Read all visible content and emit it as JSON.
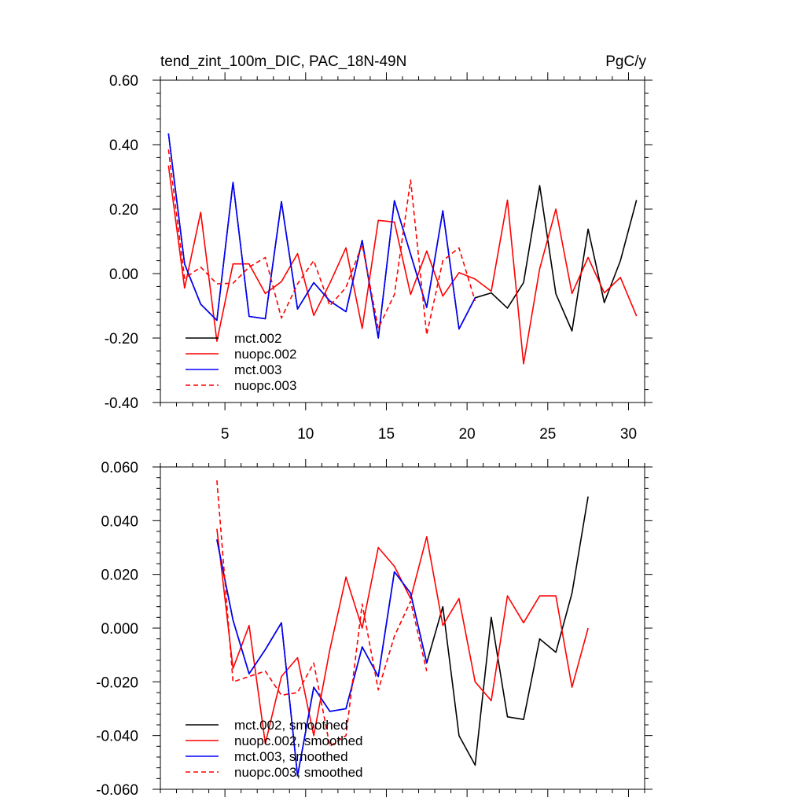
{
  "chart_data": [
    {
      "type": "line",
      "title": "tend_zint_100m_DIC, PAC_18N-49N",
      "units": "PgC/y",
      "xlabel": "",
      "ylabel": "",
      "xlim": [
        1,
        31
      ],
      "ylim": [
        -0.4,
        0.6
      ],
      "x_ticks": [
        5,
        10,
        15,
        20,
        25,
        30
      ],
      "x_tick_labels": [
        "5",
        "10",
        "15",
        "20",
        "25",
        "30"
      ],
      "y_ticks": [
        -0.4,
        -0.2,
        0.0,
        0.2,
        0.4,
        0.6
      ],
      "y_tick_labels": [
        "-0.40",
        "-0.20",
        "0.00",
        "0.20",
        "0.40",
        "0.60"
      ],
      "legend_position": "bottom-left",
      "series": [
        {
          "name": "mct.002",
          "color": "#000000",
          "dash": "solid",
          "x": [
            1.5,
            2.5,
            3.5,
            4.5,
            5.5,
            6.5,
            7.5,
            8.5,
            9.5,
            10.5,
            11.5,
            12.5,
            13.5,
            14.5,
            15.5,
            16.5,
            17.5,
            18.5,
            19.5,
            20.5,
            21.5,
            22.5,
            23.5,
            24.5,
            25.5,
            26.5,
            27.5,
            28.5,
            29.5,
            30.5
          ],
          "values": [
            0.435,
            0.03,
            -0.095,
            -0.145,
            0.283,
            -0.133,
            -0.14,
            0.223,
            -0.11,
            -0.028,
            -0.085,
            -0.118,
            0.103,
            -0.2,
            0.226,
            0.06,
            -0.105,
            0.195,
            -0.172,
            -0.075,
            -0.06,
            -0.107,
            -0.028,
            0.273,
            -0.063,
            -0.178,
            0.138,
            -0.09,
            0.04,
            0.228
          ]
        },
        {
          "name": "nuopc.002",
          "color": "#ff0000",
          "dash": "solid",
          "x": [
            1.5,
            2.5,
            3.5,
            4.5,
            5.5,
            6.5,
            7.5,
            8.5,
            9.5,
            10.5,
            11.5,
            12.5,
            13.5,
            14.5,
            15.5,
            16.5,
            17.5,
            18.5,
            19.5,
            20.5,
            21.5,
            22.5,
            23.5,
            24.5,
            25.5,
            26.5,
            27.5,
            28.5,
            29.5,
            30.5
          ],
          "values": [
            0.335,
            -0.045,
            0.19,
            -0.21,
            0.03,
            0.03,
            -0.062,
            -0.025,
            0.062,
            -0.13,
            -0.03,
            0.08,
            -0.17,
            0.165,
            0.16,
            -0.065,
            0.07,
            -0.07,
            0.003,
            -0.017,
            -0.055,
            0.228,
            -0.28,
            0.015,
            0.2,
            -0.062,
            0.05,
            -0.06,
            -0.012,
            -0.132
          ]
        },
        {
          "name": "mct.003",
          "color": "#0000ff",
          "dash": "solid",
          "x": [
            1.5,
            2.5,
            3.5,
            4.5,
            5.5,
            6.5,
            7.5,
            8.5,
            9.5,
            10.5,
            11.5,
            12.5,
            13.5,
            14.5,
            15.5,
            16.5,
            17.5,
            18.5,
            19.5,
            20.5
          ],
          "values": [
            0.435,
            0.03,
            -0.095,
            -0.145,
            0.283,
            -0.133,
            -0.14,
            0.223,
            -0.11,
            -0.028,
            -0.085,
            -0.118,
            0.103,
            -0.2,
            0.226,
            0.06,
            -0.105,
            0.195,
            -0.172,
            -0.075
          ]
        },
        {
          "name": "nuopc.003",
          "color": "#ff0000",
          "dash": "dashed",
          "x": [
            1.5,
            2.5,
            3.5,
            4.5,
            5.5,
            6.5,
            7.5,
            8.5,
            9.5,
            10.5,
            11.5,
            12.5,
            13.5,
            14.5,
            15.5,
            16.5,
            17.5,
            18.5,
            19.5,
            20.5
          ],
          "values": [
            0.385,
            -0.015,
            0.02,
            -0.032,
            -0.03,
            0.02,
            0.05,
            -0.138,
            -0.032,
            0.04,
            -0.1,
            -0.043,
            0.09,
            -0.17,
            -0.065,
            0.29,
            -0.19,
            0.04,
            0.08,
            -0.085
          ]
        }
      ]
    },
    {
      "type": "line",
      "title": "",
      "xlabel": "",
      "ylabel": "",
      "xlim": [
        1,
        31
      ],
      "ylim": [
        -0.06,
        0.06
      ],
      "x_ticks": [
        5,
        10,
        15,
        20,
        25,
        30
      ],
      "x_tick_labels": [],
      "y_ticks": [
        -0.06,
        -0.04,
        -0.02,
        0.0,
        0.02,
        0.04,
        0.06
      ],
      "y_tick_labels": [
        "-0.060",
        "-0.040",
        "-0.020",
        "0.000",
        "0.020",
        "0.040",
        "0.060"
      ],
      "legend_position": "bottom-left",
      "series": [
        {
          "name": "mct.002, smoothed",
          "color": "#000000",
          "dash": "solid",
          "x": [
            4.5,
            5.5,
            6.5,
            7.5,
            8.5,
            9.5,
            10.5,
            11.5,
            12.5,
            13.5,
            14.5,
            15.5,
            16.5,
            17.5,
            18.5,
            19.5,
            20.5,
            21.5,
            22.5,
            23.5,
            24.5,
            25.5,
            26.5,
            27.5
          ],
          "values": [
            0.033,
            0.003,
            -0.017,
            -0.008,
            0.002,
            -0.055,
            -0.022,
            -0.031,
            -0.03,
            -0.007,
            -0.018,
            0.021,
            0.013,
            -0.013,
            0.008,
            -0.04,
            -0.051,
            0.004,
            -0.033,
            -0.034,
            -0.004,
            -0.009,
            0.013,
            0.049
          ]
        },
        {
          "name": "nuopc.002, smoothed",
          "color": "#ff0000",
          "dash": "solid",
          "x": [
            4.5,
            5.5,
            6.5,
            7.5,
            8.5,
            9.5,
            10.5,
            11.5,
            12.5,
            13.5,
            14.5,
            15.5,
            16.5,
            17.5,
            18.5,
            19.5,
            20.5,
            21.5,
            22.5,
            23.5,
            24.5,
            25.5,
            26.5,
            27.5
          ],
          "values": [
            0.037,
            -0.015,
            0.001,
            -0.043,
            -0.018,
            -0.011,
            -0.04,
            -0.008,
            0.019,
            0.0,
            0.03,
            0.023,
            0.011,
            0.034,
            0.001,
            0.011,
            -0.02,
            -0.027,
            0.012,
            0.002,
            0.012,
            0.012,
            -0.022,
            0.0
          ]
        },
        {
          "name": "mct.003, smoothed",
          "color": "#0000ff",
          "dash": "solid",
          "x": [
            4.5,
            5.5,
            6.5,
            7.5,
            8.5,
            9.5,
            10.5,
            11.5,
            12.5,
            13.5,
            14.5,
            15.5,
            16.5,
            17.5
          ],
          "values": [
            0.033,
            0.003,
            -0.017,
            -0.008,
            0.002,
            -0.055,
            -0.022,
            -0.031,
            -0.03,
            -0.007,
            -0.018,
            0.021,
            0.013,
            -0.013
          ]
        },
        {
          "name": "nuopc.003, smoothed",
          "color": "#ff0000",
          "dash": "dashed",
          "x": [
            4.5,
            5.5,
            6.5,
            7.5,
            8.5,
            9.5,
            10.5,
            11.5,
            12.5,
            13.5,
            14.5,
            15.5,
            16.5,
            17.5
          ],
          "values": [
            0.055,
            -0.02,
            -0.018,
            -0.016,
            -0.025,
            -0.024,
            -0.013,
            -0.044,
            -0.04,
            0.009,
            -0.023,
            -0.003,
            0.01,
            -0.016
          ]
        }
      ]
    }
  ]
}
